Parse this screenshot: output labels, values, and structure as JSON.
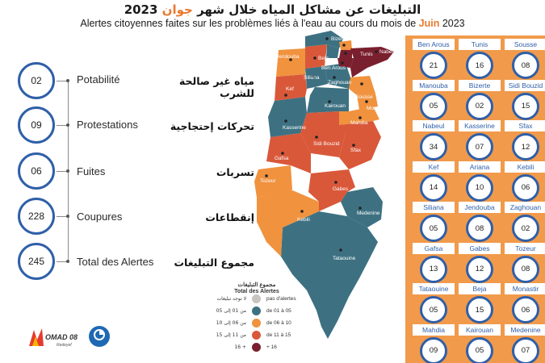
{
  "title_ar": {
    "main": "التبليغات عن مشاكل المياه خلال شهر",
    "accent": "جوان",
    "year": "2023"
  },
  "title_fr": {
    "main": "Alertes citoyennes faites sur les problèmes liés à l'eau au cours du mois de",
    "accent": "Juin",
    "year": "2023"
  },
  "stats": [
    {
      "value": "02",
      "label_fr": "Potabilité",
      "label_ar": "مياه غير صالحة للشرب"
    },
    {
      "value": "09",
      "label_fr": "Protestations",
      "label_ar": "تحركات إحتجاجية"
    },
    {
      "value": "06",
      "label_fr": "Fuites",
      "label_ar": "تسربات"
    },
    {
      "value": "228",
      "label_fr": "Coupures",
      "label_ar": "إنقطاعات"
    },
    {
      "value": "245",
      "label_fr": "Total des Alertes",
      "label_ar": "مجموع التبليغات"
    }
  ],
  "governorates": [
    {
      "name": "Ben Arous",
      "value": "21"
    },
    {
      "name": "Tunis",
      "value": "16"
    },
    {
      "name": "Sousse",
      "value": "08"
    },
    {
      "name": "Manouba",
      "value": "05"
    },
    {
      "name": "Bizerte",
      "value": "02"
    },
    {
      "name": "Sidi Bouzid",
      "value": "15"
    },
    {
      "name": "Nabeul",
      "value": "34"
    },
    {
      "name": "Kasserine",
      "value": "07"
    },
    {
      "name": "Sfax",
      "value": "12"
    },
    {
      "name": "Kef",
      "value": "14"
    },
    {
      "name": "Ariana",
      "value": "10"
    },
    {
      "name": "Kebili",
      "value": "06"
    },
    {
      "name": "Siliana",
      "value": "05"
    },
    {
      "name": "Jendouba",
      "value": "08"
    },
    {
      "name": "Zaghouan",
      "value": "02"
    },
    {
      "name": "Gafsa",
      "value": "13"
    },
    {
      "name": "Gabes",
      "value": "12"
    },
    {
      "name": "Tozeur",
      "value": "08"
    },
    {
      "name": "Tataouine",
      "value": "05"
    },
    {
      "name": "Beja",
      "value": "15"
    },
    {
      "name": "Monastir",
      "value": "06"
    },
    {
      "name": "Mahdia",
      "value": "09"
    },
    {
      "name": "Kairouan",
      "value": "05"
    },
    {
      "name": "Medenine",
      "value": "07"
    }
  ],
  "map_cities": [
    "Bizerte",
    "Ariana",
    "Tunis",
    "Nabeul",
    "Jendouba",
    "Beja",
    "Ben Arous",
    "Zaghouan",
    "Siliana",
    "Kef",
    "Sousse",
    "Kairouan",
    "Monastir",
    "Mahdia",
    "Kasserine",
    "Sidi Bouzid",
    "Sfax",
    "Gafsa",
    "Tozeur",
    "Gabes",
    "Kebili",
    "Medenine",
    "Tataouine"
  ],
  "legend": {
    "title_ar": "مجموع التبليغات",
    "title_fr": "Total des Alertes",
    "items": [
      {
        "ar": "لا توجد تبليغات",
        "fr": "pas d'alertes",
        "color": "#c8c4bf"
      },
      {
        "ar": "من 01 إلى 05",
        "fr": "de 01 à 05",
        "color": "#3d7182"
      },
      {
        "ar": "من 06 إلى 10",
        "fr": "de 06 à 10",
        "color": "#f0923e"
      },
      {
        "ar": "من 11 إلى 15",
        "fr": "de 11 à 15",
        "color": "#d9583a"
      },
      {
        "ar": "+ 16",
        "fr": "+ 16",
        "color": "#7a1f2e"
      }
    ]
  },
  "logos": {
    "omad_text": "OMAD 08",
    "omad_sub": "Redeyef"
  },
  "colors": {
    "accent": "#e8792e",
    "circle_border": "#2f5fa8",
    "panel": "#f19a4b"
  }
}
